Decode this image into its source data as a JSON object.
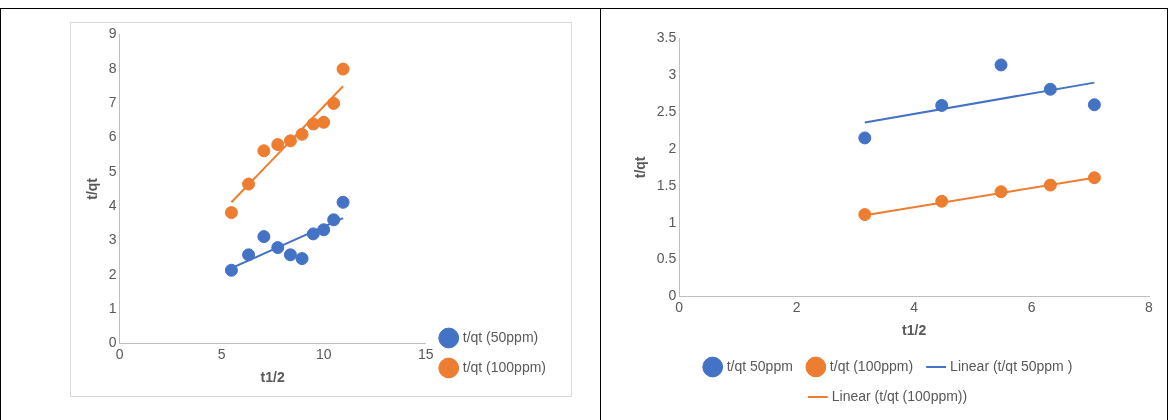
{
  "chart_data": [
    {
      "type": "scatter",
      "xlabel": "t1/2",
      "ylabel": "t/qt",
      "xlim": [
        0,
        15
      ],
      "xticks": [
        0,
        5,
        10,
        15
      ],
      "ylim": [
        0,
        9
      ],
      "yticks": [
        0,
        1,
        2,
        3,
        4,
        5,
        6,
        7,
        8,
        9
      ],
      "grid": false,
      "legend": "bottom right",
      "series": [
        {
          "name": "t/qt (50ppm)",
          "type": "scatter",
          "marker": "circle",
          "color": "#4472c4",
          "x": [
            5.48,
            6.32,
            7.07,
            7.75,
            8.37,
            8.94,
            9.49,
            10.0,
            10.49,
            10.95
          ],
          "values": [
            2.13,
            2.58,
            3.11,
            2.79,
            2.58,
            2.47,
            3.19,
            3.31,
            3.6,
            4.11
          ]
        },
        {
          "name": "t/qt (100ppm)",
          "type": "scatter",
          "marker": "circle",
          "color": "#ed7d31",
          "x": [
            5.48,
            6.32,
            7.07,
            7.75,
            8.37,
            8.94,
            9.49,
            10.0,
            10.49,
            10.95
          ],
          "values": [
            3.81,
            4.64,
            5.61,
            5.79,
            5.9,
            6.09,
            6.39,
            6.44,
            6.99,
            7.99
          ]
        },
        {
          "type": "line",
          "color": "#4472c4",
          "x": [
            5.48,
            10.95
          ],
          "values": [
            2.19,
            3.65
          ]
        },
        {
          "type": "line",
          "color": "#ed7d31",
          "x": [
            5.48,
            10.95
          ],
          "values": [
            4.11,
            7.49
          ]
        }
      ]
    },
    {
      "type": "scatter",
      "xlabel": "t1/2",
      "ylabel": "t/qt",
      "xlim": [
        0,
        8
      ],
      "xticks": [
        0,
        2,
        4,
        6,
        8
      ],
      "ylim": [
        0,
        3.5
      ],
      "yticks": [
        0,
        0.5,
        1,
        1.5,
        2,
        2.5,
        3,
        3.5
      ],
      "grid": false,
      "legend": "bottom",
      "series": [
        {
          "name": "t/qt 50ppm",
          "type": "scatter",
          "marker": "circle",
          "color": "#4472c4",
          "x": [
            3.16,
            4.47,
            5.48,
            6.32,
            7.07
          ],
          "values": [
            2.15,
            2.59,
            3.14,
            2.81,
            2.6
          ]
        },
        {
          "name": "t/qt (100ppm)",
          "type": "scatter",
          "marker": "circle",
          "color": "#ed7d31",
          "x": [
            3.16,
            4.47,
            5.48,
            6.32,
            7.07
          ],
          "values": [
            1.11,
            1.29,
            1.42,
            1.51,
            1.61
          ]
        },
        {
          "name": "Linear (t/qt 50ppm )",
          "type": "line",
          "color": "#4472c4",
          "x": [
            3.16,
            7.07
          ],
          "values": [
            2.36,
            2.9
          ]
        },
        {
          "name": "Linear (t/qt (100ppm))",
          "type": "line",
          "color": "#ed7d31",
          "x": [
            3.16,
            7.07
          ],
          "values": [
            1.1,
            1.61
          ]
        }
      ]
    }
  ]
}
